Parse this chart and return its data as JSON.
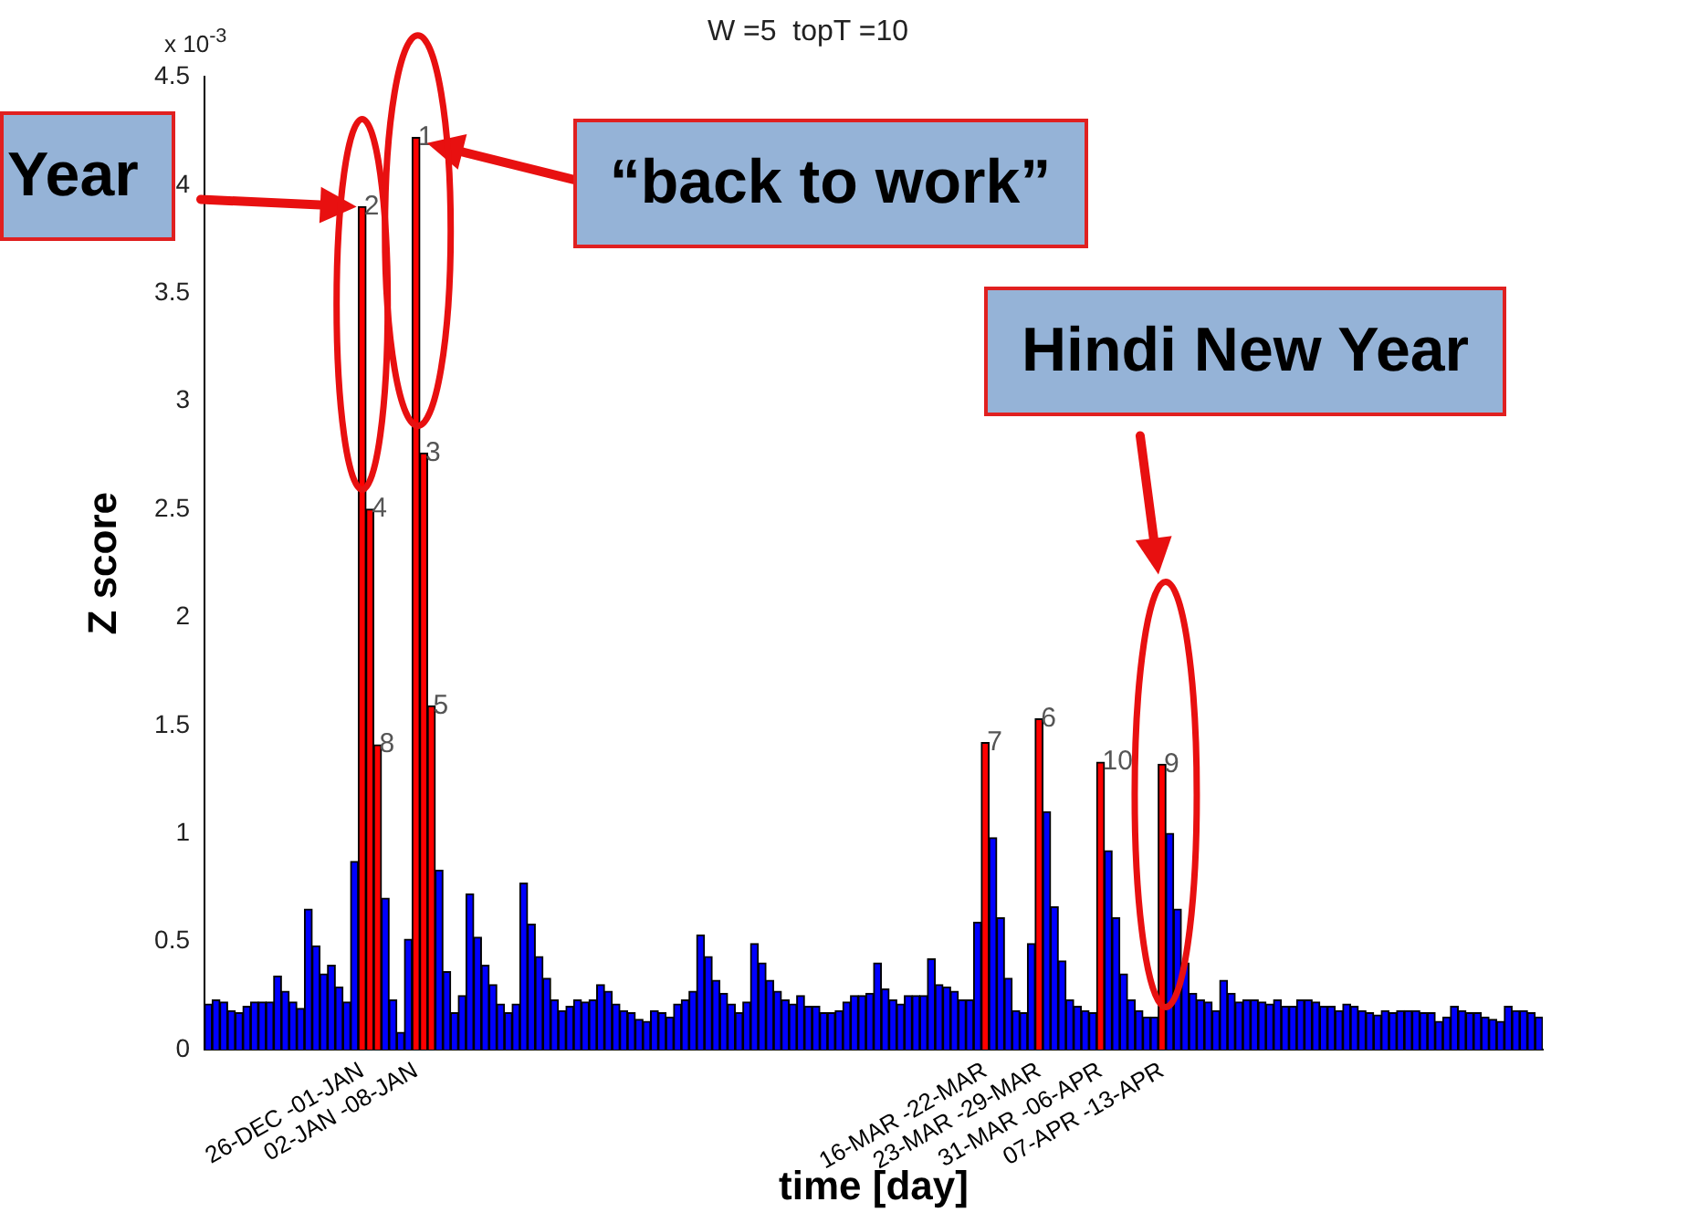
{
  "chart_data": {
    "type": "bar",
    "title": "W =5  topT =10",
    "xlabel": "time [day]",
    "ylabel": "Z score",
    "categories": [
      null,
      null,
      null,
      null,
      null,
      null,
      null,
      null,
      null,
      null,
      null,
      null,
      null,
      null,
      null,
      null,
      null,
      null,
      null,
      null,
      "26-DEC -01-JAN",
      null,
      null,
      null,
      null,
      null,
      null,
      "02-JAN -08-JAN",
      null,
      null,
      null,
      null,
      null,
      null,
      null,
      null,
      null,
      null,
      null,
      null,
      null,
      null,
      null,
      null,
      null,
      null,
      null,
      null,
      null,
      null,
      null,
      null,
      null,
      null,
      null,
      null,
      null,
      null,
      null,
      null,
      null,
      null,
      null,
      null,
      null,
      null,
      null,
      null,
      null,
      null,
      null,
      null,
      null,
      null,
      null,
      null,
      null,
      null,
      null,
      null,
      null,
      null,
      null,
      null,
      null,
      null,
      null,
      null,
      null,
      null,
      null,
      null,
      null,
      null,
      null,
      null,
      null,
      null,
      null,
      null,
      null,
      "16-MAR -22-MAR",
      null,
      null,
      null,
      null,
      null,
      null,
      "23-MAR -29-MAR",
      null,
      null,
      null,
      null,
      null,
      null,
      null,
      "31-MAR -06-APR",
      null,
      null,
      null,
      null,
      null,
      null,
      null,
      "07-APR -13-APR",
      null,
      null,
      null,
      null,
      null,
      null,
      null,
      null,
      null,
      null,
      null,
      null,
      null,
      null,
      null,
      null,
      null,
      null,
      null,
      null,
      null,
      null,
      null,
      null,
      null,
      null,
      null,
      null,
      null,
      null,
      null,
      null,
      null,
      null,
      null,
      null,
      null,
      null,
      null,
      null,
      null,
      null,
      null,
      null,
      null,
      null,
      null,
      null,
      null
    ],
    "values": [
      0.21,
      0.23,
      0.22,
      0.18,
      0.17,
      0.2,
      0.22,
      0.22,
      0.22,
      0.34,
      0.27,
      0.22,
      0.19,
      0.65,
      0.48,
      0.35,
      0.39,
      0.29,
      0.22,
      0.87,
      3.9,
      2.5,
      1.41,
      0.7,
      0.23,
      0.08,
      0.51,
      4.22,
      2.76,
      1.59,
      0.83,
      0.36,
      0.17,
      0.25,
      0.72,
      0.52,
      0.39,
      0.3,
      0.21,
      0.17,
      0.21,
      0.77,
      0.58,
      0.43,
      0.33,
      0.23,
      0.18,
      0.2,
      0.23,
      0.22,
      0.23,
      0.3,
      0.27,
      0.21,
      0.18,
      0.17,
      0.14,
      0.13,
      0.18,
      0.17,
      0.15,
      0.21,
      0.23,
      0.27,
      0.53,
      0.43,
      0.32,
      0.26,
      0.21,
      0.17,
      0.22,
      0.49,
      0.4,
      0.32,
      0.27,
      0.23,
      0.21,
      0.25,
      0.2,
      0.2,
      0.17,
      0.17,
      0.18,
      0.22,
      0.25,
      0.25,
      0.26,
      0.4,
      0.28,
      0.23,
      0.21,
      0.25,
      0.25,
      0.25,
      0.42,
      0.3,
      0.29,
      0.27,
      0.23,
      0.23,
      0.59,
      1.42,
      0.98,
      0.61,
      0.33,
      0.18,
      0.17,
      0.49,
      1.53,
      1.1,
      0.66,
      0.41,
      0.23,
      0.2,
      0.18,
      0.17,
      1.33,
      0.92,
      0.61,
      0.35,
      0.23,
      0.18,
      0.15,
      0.15,
      1.32,
      1.0,
      0.65,
      0.4,
      0.26,
      0.23,
      0.22,
      0.18,
      0.32,
      0.26,
      0.22,
      0.23,
      0.23,
      0.22,
      0.21,
      0.23,
      0.2,
      0.2,
      0.23,
      0.23,
      0.22,
      0.2,
      0.2,
      0.18,
      0.21,
      0.2,
      0.18,
      0.17,
      0.16,
      0.18,
      0.17,
      0.18,
      0.18,
      0.18,
      0.17,
      0.17,
      0.13,
      0.15,
      0.2,
      0.18,
      0.17,
      0.17,
      0.15,
      0.14,
      0.13,
      0.2,
      0.18,
      0.18,
      0.17,
      0.15
    ],
    "colors": [
      "#0000ff",
      "#0000ff",
      "#0000ff",
      "#0000ff",
      "#0000ff",
      "#0000ff",
      "#0000ff",
      "#0000ff",
      "#0000ff",
      "#0000ff",
      "#0000ff",
      "#0000ff",
      "#0000ff",
      "#0000ff",
      "#0000ff",
      "#0000ff",
      "#0000ff",
      "#0000ff",
      "#0000ff",
      "#0000ff",
      "#ff0000",
      "#ff0000",
      "#ff0000",
      "#0000ff",
      "#0000ff",
      "#0000ff",
      "#0000ff",
      "#ff0000",
      "#ff0000",
      "#ff0000",
      "#0000ff",
      "#0000ff",
      "#0000ff",
      "#0000ff",
      "#0000ff",
      "#0000ff",
      "#0000ff",
      "#0000ff",
      "#0000ff",
      "#0000ff",
      "#0000ff",
      "#0000ff",
      "#0000ff",
      "#0000ff",
      "#0000ff",
      "#0000ff",
      "#0000ff",
      "#0000ff",
      "#0000ff",
      "#0000ff",
      "#0000ff",
      "#0000ff",
      "#0000ff",
      "#0000ff",
      "#0000ff",
      "#0000ff",
      "#0000ff",
      "#0000ff",
      "#0000ff",
      "#0000ff",
      "#0000ff",
      "#0000ff",
      "#0000ff",
      "#0000ff",
      "#0000ff",
      "#0000ff",
      "#0000ff",
      "#0000ff",
      "#0000ff",
      "#0000ff",
      "#0000ff",
      "#0000ff",
      "#0000ff",
      "#0000ff",
      "#0000ff",
      "#0000ff",
      "#0000ff",
      "#0000ff",
      "#0000ff",
      "#0000ff",
      "#0000ff",
      "#0000ff",
      "#0000ff",
      "#0000ff",
      "#0000ff",
      "#0000ff",
      "#0000ff",
      "#0000ff",
      "#0000ff",
      "#0000ff",
      "#0000ff",
      "#0000ff",
      "#0000ff",
      "#0000ff",
      "#0000ff",
      "#0000ff",
      "#0000ff",
      "#0000ff",
      "#0000ff",
      "#0000ff",
      "#0000ff",
      "#ff0000",
      "#0000ff",
      "#0000ff",
      "#0000ff",
      "#0000ff",
      "#0000ff",
      "#0000ff",
      "#ff0000",
      "#0000ff",
      "#0000ff",
      "#0000ff",
      "#0000ff",
      "#0000ff",
      "#0000ff",
      "#0000ff",
      "#ff0000",
      "#0000ff",
      "#0000ff",
      "#0000ff",
      "#0000ff",
      "#0000ff",
      "#0000ff",
      "#0000ff",
      "#ff0000",
      "#0000ff",
      "#0000ff",
      "#0000ff",
      "#0000ff",
      "#0000ff",
      "#0000ff",
      "#0000ff",
      "#0000ff",
      "#0000ff",
      "#0000ff",
      "#0000ff",
      "#0000ff",
      "#0000ff",
      "#0000ff",
      "#0000ff",
      "#0000ff",
      "#0000ff",
      "#0000ff",
      "#0000ff",
      "#0000ff",
      "#0000ff",
      "#0000ff",
      "#0000ff",
      "#0000ff",
      "#0000ff",
      "#0000ff",
      "#0000ff",
      "#0000ff",
      "#0000ff",
      "#0000ff",
      "#0000ff",
      "#0000ff",
      "#0000ff",
      "#0000ff",
      "#0000ff",
      "#0000ff",
      "#0000ff",
      "#0000ff",
      "#0000ff",
      "#0000ff",
      "#0000ff",
      "#0000ff",
      "#0000ff",
      "#0000ff",
      "#0000ff",
      "#0000ff",
      "#0000ff",
      "#0000ff",
      "#0000ff"
    ],
    "ylim": [
      0,
      4.5
    ],
    "yticks": [
      0,
      0.5,
      1,
      1.5,
      2,
      2.5,
      3,
      3.5,
      4,
      4.5
    ],
    "annotations": [
      "x 10$^{-3}$",
      "Year",
      "“back to work”",
      "Hindi New Year",
      {
        "text": "1",
        "x": "02-JAN -08-JAN",
        "y": 4.22
      },
      {
        "text": "2",
        "x": "26-DEC -01-JAN",
        "y": 3.9
      },
      {
        "text": "3",
        "y": 2.76
      },
      {
        "text": "4",
        "y": 2.5
      },
      {
        "text": "5",
        "y": 1.59
      },
      {
        "text": "6",
        "x": "23-MAR -29-MAR",
        "y": 1.53
      },
      {
        "text": "7",
        "x": "16-MAR -22-MAR",
        "y": 1.42
      },
      {
        "text": "8",
        "y": 1.41
      },
      {
        "text": "9",
        "x": "07-APR -13-APR",
        "y": 1.32
      },
      {
        "text": "10",
        "x": "31-MAR -06-APR",
        "y": 1.33
      }
    ]
  }
}
